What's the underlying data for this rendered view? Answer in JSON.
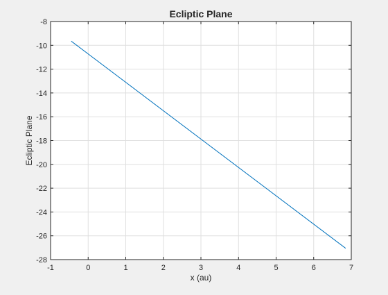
{
  "chart_data": {
    "type": "line",
    "title": "Ecliptic Plane",
    "xlabel": "x (au)",
    "ylabel": "Ecliptic Plane",
    "xlim": [
      -1,
      7
    ],
    "ylim": [
      -28,
      -8
    ],
    "xticks": [
      -1,
      0,
      1,
      2,
      3,
      4,
      5,
      6,
      7
    ],
    "yticks": [
      -28,
      -26,
      -24,
      -22,
      -20,
      -18,
      -16,
      -14,
      -12,
      -10,
      -8
    ],
    "xtick_labels": [
      "-1",
      "0",
      "1",
      "2",
      "3",
      "4",
      "5",
      "6",
      "7"
    ],
    "ytick_labels": [
      "-28",
      "-26",
      "-24",
      "-22",
      "-20",
      "-18",
      "-16",
      "-14",
      "-12",
      "-10",
      "-8"
    ],
    "grid": true,
    "series": [
      {
        "color": "#0072bd",
        "x": [
          -0.45,
          6.85
        ],
        "y": [
          -9.65,
          -27.05
        ]
      }
    ]
  }
}
